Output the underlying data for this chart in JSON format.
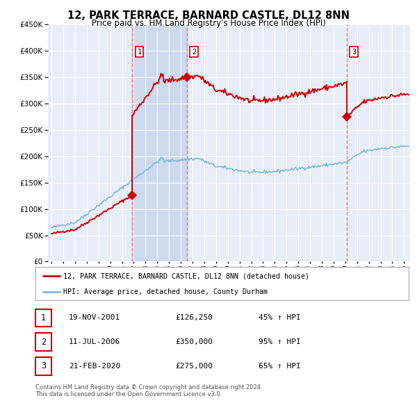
{
  "title": "12, PARK TERRACE, BARNARD CASTLE, DL12 8NN",
  "subtitle": "Price paid vs. HM Land Registry's House Price Index (HPI)",
  "legend_line1": "12, PARK TERRACE, BARNARD CASTLE, DL12 8NN (detached house)",
  "legend_line2": "HPI: Average price, detached house, County Durham",
  "footer1": "Contains HM Land Registry data © Crown copyright and database right 2024.",
  "footer2": "This data is licensed under the Open Government Licence v3.0.",
  "sales": [
    {
      "num": 1,
      "date": "19-NOV-2001",
      "price": 126250,
      "pct": "45%",
      "x": 2001.884
    },
    {
      "num": 2,
      "date": "11-JUL-2006",
      "price": 350000,
      "pct": "95%",
      "x": 2006.532
    },
    {
      "num": 3,
      "date": "21-FEB-2020",
      "price": 275000,
      "pct": "65%",
      "x": 2020.139
    }
  ],
  "hpi_color": "#7ab8d9",
  "price_color": "#cc0000",
  "vline_color": "#e87070",
  "background_color": "#ffffff",
  "plot_bg_color": "#e8eef8",
  "grid_color": "#ffffff",
  "shade_color": "#d0dcf0",
  "ylim": [
    0,
    450000
  ],
  "xlim_start": 1994.7,
  "xlim_end": 2025.5,
  "yticks": [
    0,
    50000,
    100000,
    150000,
    200000,
    250000,
    300000,
    350000,
    400000,
    450000
  ]
}
